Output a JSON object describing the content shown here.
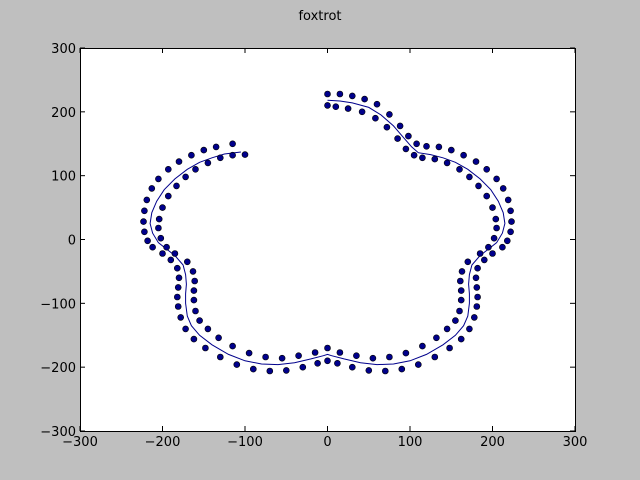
{
  "chart_data": {
    "type": "scatter",
    "title": "foxtrot",
    "xlabel": "",
    "ylabel": "",
    "xlim": [
      -300,
      300
    ],
    "ylim": [
      -300,
      300
    ],
    "xticks": [
      -300,
      -200,
      -100,
      0,
      100,
      200,
      300
    ],
    "yticks": [
      -300,
      -200,
      -100,
      0,
      100,
      200,
      300
    ],
    "xtick_labels": [
      "−300",
      "−200",
      "−100",
      "0",
      "100",
      "200",
      "300"
    ],
    "ytick_labels": [
      "−300",
      "−200",
      "−100",
      "0",
      "100",
      "200",
      "300"
    ],
    "grid": false,
    "colors": {
      "points": "#00008b",
      "line": "#00008b",
      "plot_bg": "#ffffff",
      "figure_bg": "#bfbfbf"
    },
    "series": [
      {
        "kind": "line",
        "points": [
          [
            -105,
            137
          ],
          [
            -125,
            134
          ],
          [
            -140,
            128
          ],
          [
            -155,
            121
          ],
          [
            -170,
            110
          ],
          [
            -185,
            95
          ],
          [
            -198,
            78
          ],
          [
            -207,
            60
          ],
          [
            -213,
            42
          ],
          [
            -215,
            25
          ],
          [
            -212,
            10
          ],
          [
            -205,
            -5
          ],
          [
            -195,
            -15
          ],
          [
            -185,
            -25
          ],
          [
            -175,
            -40
          ],
          [
            -172,
            -55
          ],
          [
            -171,
            -70
          ],
          [
            -172,
            -85
          ],
          [
            -172,
            -100
          ],
          [
            -170,
            -120
          ],
          [
            -165,
            -135
          ],
          [
            -155,
            -150
          ],
          [
            -140,
            -165
          ],
          [
            -120,
            -180
          ],
          [
            -100,
            -190
          ],
          [
            -80,
            -195
          ],
          [
            -60,
            -196
          ],
          [
            -40,
            -193
          ],
          [
            -20,
            -187
          ],
          [
            -5,
            -182
          ],
          [
            0,
            -180
          ],
          [
            5,
            -182
          ],
          [
            20,
            -187
          ],
          [
            40,
            -193
          ],
          [
            60,
            -196
          ],
          [
            80,
            -195
          ],
          [
            100,
            -190
          ],
          [
            120,
            -180
          ],
          [
            140,
            -165
          ],
          [
            155,
            -150
          ],
          [
            165,
            -135
          ],
          [
            170,
            -120
          ],
          [
            172,
            -100
          ],
          [
            172,
            -85
          ],
          [
            171,
            -70
          ],
          [
            172,
            -55
          ],
          [
            175,
            -40
          ],
          [
            185,
            -25
          ],
          [
            195,
            -15
          ],
          [
            205,
            -5
          ],
          [
            212,
            10
          ],
          [
            215,
            25
          ],
          [
            213,
            42
          ],
          [
            207,
            60
          ],
          [
            198,
            78
          ],
          [
            185,
            95
          ],
          [
            170,
            110
          ],
          [
            155,
            121
          ],
          [
            140,
            128
          ],
          [
            125,
            133
          ],
          [
            110,
            136
          ],
          [
            102,
            145
          ],
          [
            92,
            160
          ],
          [
            80,
            178
          ],
          [
            65,
            195
          ],
          [
            50,
            207
          ],
          [
            30,
            214
          ],
          [
            15,
            217
          ],
          [
            0,
            218
          ]
        ]
      },
      {
        "kind": "scatter",
        "points": [
          [
            -115,
            150
          ],
          [
            -135,
            145
          ],
          [
            -150,
            140
          ],
          [
            -165,
            132
          ],
          [
            -180,
            122
          ],
          [
            -193,
            110
          ],
          [
            -205,
            95
          ],
          [
            -213,
            80
          ],
          [
            -219,
            62
          ],
          [
            -222,
            45
          ],
          [
            -223,
            28
          ],
          [
            -222,
            12
          ],
          [
            -218,
            -2
          ],
          [
            -212,
            -12
          ],
          [
            -200,
            -22
          ],
          [
            -190,
            -32
          ],
          [
            -182,
            -45
          ],
          [
            -180,
            -60
          ],
          [
            -181,
            -75
          ],
          [
            -182,
            -90
          ],
          [
            -181,
            -105
          ],
          [
            -178,
            -122
          ],
          [
            -172,
            -140
          ],
          [
            -162,
            -156
          ],
          [
            -148,
            -170
          ],
          [
            -130,
            -184
          ],
          [
            -110,
            -196
          ],
          [
            -90,
            -203
          ],
          [
            -70,
            -206
          ],
          [
            -50,
            -205
          ],
          [
            -30,
            -200
          ],
          [
            -12,
            -194
          ],
          [
            0,
            -190
          ],
          [
            12,
            -194
          ],
          [
            30,
            -200
          ],
          [
            50,
            -205
          ],
          [
            70,
            -206
          ],
          [
            90,
            -203
          ],
          [
            110,
            -196
          ],
          [
            130,
            -184
          ],
          [
            148,
            -170
          ],
          [
            162,
            -156
          ],
          [
            172,
            -140
          ],
          [
            178,
            -122
          ],
          [
            181,
            -105
          ],
          [
            182,
            -90
          ],
          [
            181,
            -75
          ],
          [
            180,
            -60
          ],
          [
            182,
            -45
          ],
          [
            190,
            -32
          ],
          [
            200,
            -22
          ],
          [
            212,
            -12
          ],
          [
            218,
            -2
          ],
          [
            222,
            12
          ],
          [
            223,
            28
          ],
          [
            222,
            45
          ],
          [
            219,
            62
          ],
          [
            213,
            80
          ],
          [
            205,
            95
          ],
          [
            193,
            110
          ],
          [
            180,
            122
          ],
          [
            165,
            132
          ],
          [
            150,
            140
          ],
          [
            135,
            145
          ],
          [
            120,
            146
          ],
          [
            108,
            150
          ],
          [
            98,
            162
          ],
          [
            88,
            178
          ],
          [
            75,
            196
          ],
          [
            60,
            212
          ],
          [
            45,
            220
          ],
          [
            30,
            225
          ],
          [
            15,
            228
          ],
          [
            0,
            228
          ],
          [
            -100,
            133
          ],
          [
            -115,
            132
          ],
          [
            -130,
            128
          ],
          [
            -145,
            120
          ],
          [
            -160,
            110
          ],
          [
            -172,
            98
          ],
          [
            -183,
            84
          ],
          [
            -193,
            68
          ],
          [
            -200,
            50
          ],
          [
            -204,
            32
          ],
          [
            -205,
            18
          ],
          [
            -202,
            2
          ],
          [
            -195,
            -12
          ],
          [
            -185,
            -22
          ],
          [
            -170,
            -35
          ],
          [
            -163,
            -50
          ],
          [
            -161,
            -65
          ],
          [
            -162,
            -80
          ],
          [
            -162,
            -95
          ],
          [
            -160,
            -112
          ],
          [
            -155,
            -127
          ],
          [
            -145,
            -140
          ],
          [
            -132,
            -154
          ],
          [
            -115,
            -167
          ],
          [
            -95,
            -178
          ],
          [
            -75,
            -184
          ],
          [
            -55,
            -186
          ],
          [
            -35,
            -182
          ],
          [
            -15,
            -177
          ],
          [
            0,
            -170
          ],
          [
            15,
            -177
          ],
          [
            35,
            -182
          ],
          [
            55,
            -186
          ],
          [
            75,
            -184
          ],
          [
            95,
            -178
          ],
          [
            115,
            -167
          ],
          [
            132,
            -154
          ],
          [
            145,
            -140
          ],
          [
            155,
            -127
          ],
          [
            160,
            -112
          ],
          [
            162,
            -95
          ],
          [
            162,
            -80
          ],
          [
            161,
            -65
          ],
          [
            163,
            -50
          ],
          [
            170,
            -35
          ],
          [
            185,
            -22
          ],
          [
            195,
            -12
          ],
          [
            202,
            2
          ],
          [
            205,
            18
          ],
          [
            204,
            32
          ],
          [
            200,
            50
          ],
          [
            193,
            68
          ],
          [
            183,
            84
          ],
          [
            172,
            98
          ],
          [
            160,
            110
          ],
          [
            145,
            120
          ],
          [
            130,
            126
          ],
          [
            115,
            128
          ],
          [
            105,
            132
          ],
          [
            95,
            142
          ],
          [
            85,
            158
          ],
          [
            72,
            176
          ],
          [
            58,
            190
          ],
          [
            42,
            200
          ],
          [
            25,
            205
          ],
          [
            10,
            208
          ],
          [
            0,
            210
          ]
        ]
      }
    ]
  }
}
